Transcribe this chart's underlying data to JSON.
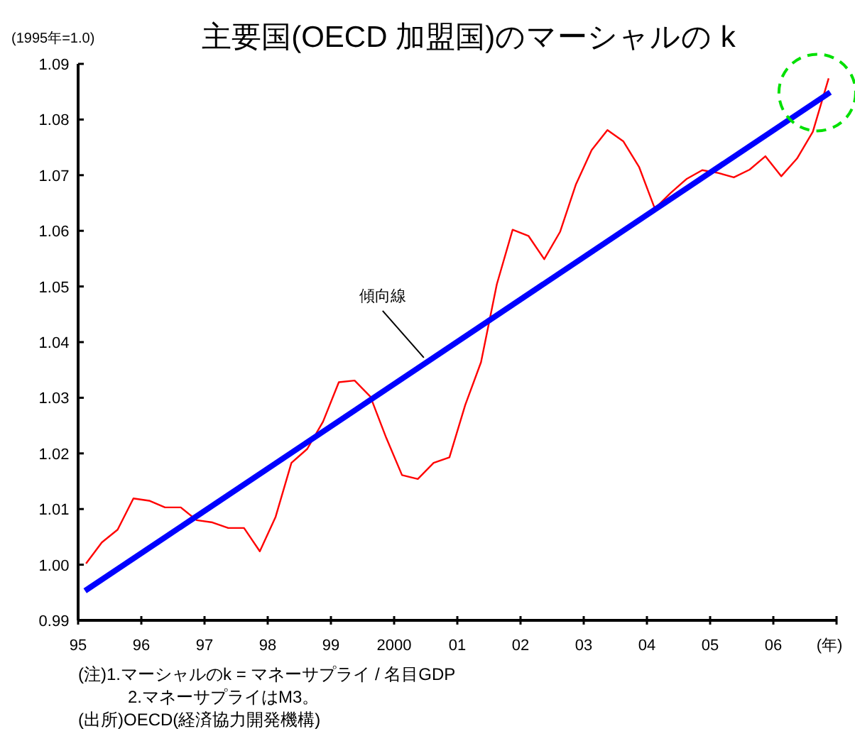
{
  "chart_data": {
    "type": "line",
    "title": "主要国(OECD 加盟国)のマーシャルの k",
    "ylabel": "(1995年=1.0)",
    "xlabel": "(年)",
    "xlim": [
      1995,
      2007
    ],
    "xticks": [
      {
        "value": 1995,
        "label": "95"
      },
      {
        "value": 1996,
        "label": "96"
      },
      {
        "value": 1997,
        "label": "97"
      },
      {
        "value": 1998,
        "label": "98"
      },
      {
        "value": 1999,
        "label": "99"
      },
      2000,
      {
        "value": 2001,
        "label": "01"
      },
      {
        "value": 2002,
        "label": "02"
      },
      {
        "value": 2003,
        "label": "03"
      },
      {
        "value": 2004,
        "label": "04"
      },
      {
        "value": 2005,
        "label": "05"
      },
      {
        "value": 2006,
        "label": "06"
      },
      {
        "value": 2007,
        "label": null
      }
    ],
    "ylim": [
      0.99,
      1.09
    ],
    "yticks": [
      0.99,
      {
        "value": 1.0,
        "label": "1.00"
      },
      1.01,
      1.02,
      1.03,
      1.04,
      1.05,
      1.06,
      1.07,
      1.08,
      1.09
    ],
    "grid": false,
    "marker": "none",
    "series": [
      {
        "color": "#ff0000",
        "line_style": "solid",
        "x": [
          1995.125,
          1995.375,
          1995.625,
          1995.875,
          1996.125,
          1996.375,
          1996.625,
          1996.875,
          1997.125,
          1997.375,
          1997.625,
          1997.875,
          1998.125,
          1998.375,
          1998.625,
          1998.875,
          1999.125,
          1999.375,
          1999.625,
          1999.875,
          2000.125,
          2000.375,
          2000.625,
          2000.875,
          2001.125,
          2001.375,
          2001.625,
          2001.875,
          2002.125,
          2002.375,
          2002.625,
          2002.875,
          2003.125,
          2003.375,
          2003.625,
          2003.875,
          2004.125,
          2004.375,
          2004.625,
          2004.875,
          2005.125,
          2005.375,
          2005.625,
          2005.875,
          2006.125,
          2006.375,
          2006.625,
          2006.875
        ],
        "values": [
          1.0002,
          1.004,
          1.0063,
          1.0119,
          1.0115,
          1.0103,
          1.0103,
          1.008,
          1.0076,
          1.0066,
          1.0066,
          1.0024,
          1.0086,
          1.0183,
          1.0208,
          1.0257,
          1.0328,
          1.0331,
          1.0302,
          1.0228,
          1.0161,
          1.0154,
          1.0183,
          1.0193,
          1.0287,
          1.0364,
          1.0504,
          1.0602,
          1.0591,
          1.0549,
          1.0598,
          1.0683,
          1.0745,
          1.0781,
          1.0761,
          1.0715,
          1.064,
          1.0668,
          1.0693,
          1.0709,
          1.0704,
          1.0696,
          1.071,
          1.0734,
          1.0698,
          1.073,
          1.0778,
          1.0874
        ]
      },
      {
        "type": "line",
        "color": "#0000ff",
        "line_style": "solid",
        "x": [
          1995.11,
          2006.9
        ],
        "values": [
          0.9953,
          1.0849
        ]
      }
    ],
    "annotations": [
      {
        "text": "傾向線",
        "x": 2000.47,
        "y": 1.0372
      },
      "(注)1.マーシャルのk = マネーサプライ / 名目GDP",
      "2.マネーサプライはM3。",
      "(出所)OECD(経済協力開発機構)"
    ]
  }
}
